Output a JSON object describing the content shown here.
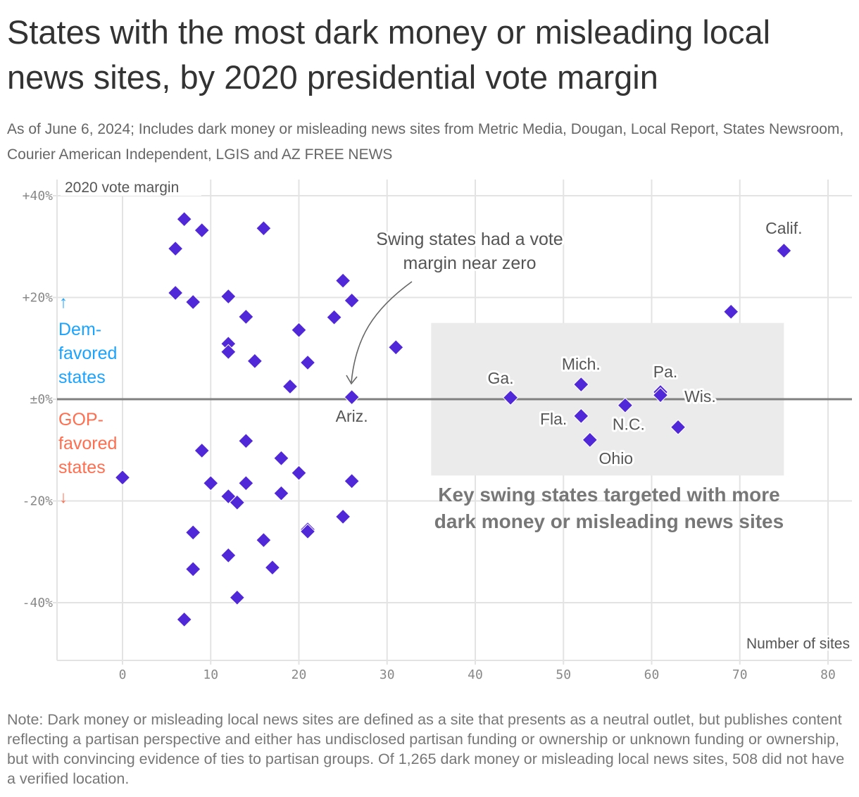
{
  "title": "States with the most dark money or misleading local news sites, by 2020 presidential vote margin",
  "subtitle": "As of June 6, 2024; Includes dark money or misleading news sites from Metric Media, Dougan, Local Report, States Newsroom, Courier American Independent, LGIS and AZ FREE NEWS",
  "note": "Note: Dark money or misleading local news sites are defined as a site that presents as a neutral outlet, but publishes content reflecting a partisan perspective and either has undisclosed partisan funding or ownership or unknown funding or ownership, but with convincing evidence of ties to partisan groups. Of 1,265 dark money or misleading local news sites, 508 did not have a verified location.",
  "chart_data": {
    "type": "scatter",
    "xlabel": "Number of sites",
    "ylabel": "2020 vote margin",
    "xlim": [
      -7.5,
      82.5
    ],
    "ylim": [
      -51,
      44
    ],
    "x_ticks": [
      "0",
      "10",
      "20",
      "30",
      "40",
      "50",
      "60",
      "70",
      "80"
    ],
    "x_tick_values": [
      0,
      10,
      20,
      30,
      40,
      50,
      60,
      70,
      80
    ],
    "y_ticks": [
      "+40%",
      "+20%",
      "±0%",
      "-20%",
      "-40%"
    ],
    "y_tick_values": [
      40,
      20,
      0,
      -20,
      -40
    ],
    "grid": true,
    "marker": "diamond",
    "colors": {
      "points": "#5128d8",
      "dem": "#1aa3ff",
      "gop": "#ff6e4f",
      "zero_line": "#808080",
      "swing_box": "#ebebeb"
    },
    "side_labels": {
      "dem": [
        "Dem-",
        "favored",
        "states"
      ],
      "gop": [
        "GOP-",
        "favored",
        "states"
      ],
      "up_arrow": "↑",
      "down_arrow": "↓"
    },
    "annotations": {
      "swing_note": [
        "Swing states had a vote",
        "margin near zero"
      ],
      "swing_box_label": [
        "Key swing states targeted with more",
        "dark money or misleading news sites"
      ],
      "swing_box_range": {
        "x": [
          35,
          75
        ],
        "y": [
          -15,
          15
        ]
      }
    },
    "points": [
      {
        "x": 7,
        "y": 35.4
      },
      {
        "x": 9,
        "y": 33.2
      },
      {
        "x": 16,
        "y": 33.6
      },
      {
        "x": 6,
        "y": 29.6
      },
      {
        "x": 6,
        "y": 20.9
      },
      {
        "x": 8,
        "y": 19.1
      },
      {
        "x": 12,
        "y": 20.2
      },
      {
        "x": 14,
        "y": 16.2
      },
      {
        "x": 12,
        "y": 10.9
      },
      {
        "x": 12,
        "y": 9.3
      },
      {
        "x": 15,
        "y": 7.5
      },
      {
        "x": 19,
        "y": 2.5
      },
      {
        "x": 20,
        "y": 13.6
      },
      {
        "x": 21,
        "y": 7.2
      },
      {
        "x": 24,
        "y": 16.1
      },
      {
        "x": 25,
        "y": 23.3
      },
      {
        "x": 26,
        "y": 19.4
      },
      {
        "x": 26,
        "y": 0.4,
        "label": "Ariz."
      },
      {
        "x": 31,
        "y": 10.2
      },
      {
        "x": 0,
        "y": -15.4
      },
      {
        "x": 9,
        "y": -10.1
      },
      {
        "x": 14,
        "y": -8.2
      },
      {
        "x": 18,
        "y": -11.6
      },
      {
        "x": 20,
        "y": -14.5
      },
      {
        "x": 10,
        "y": -16.5
      },
      {
        "x": 14,
        "y": -16.5
      },
      {
        "x": 12,
        "y": -19.1
      },
      {
        "x": 13,
        "y": -20.3
      },
      {
        "x": 18,
        "y": -18.5
      },
      {
        "x": 26,
        "y": -16.1
      },
      {
        "x": 25,
        "y": -23.1
      },
      {
        "x": 21,
        "y": -25.6
      },
      {
        "x": 21,
        "y": -26.0
      },
      {
        "x": 8,
        "y": -26.2
      },
      {
        "x": 16,
        "y": -27.7
      },
      {
        "x": 12,
        "y": -30.7
      },
      {
        "x": 17,
        "y": -33.1
      },
      {
        "x": 8,
        "y": -33.4
      },
      {
        "x": 13,
        "y": -39.0
      },
      {
        "x": 7,
        "y": -43.3
      },
      {
        "x": 44,
        "y": 0.3,
        "label": "Ga."
      },
      {
        "x": 52,
        "y": 2.9,
        "label": "Mich."
      },
      {
        "x": 52,
        "y": -3.3,
        "label": "Fla."
      },
      {
        "x": 53,
        "y": -8.0,
        "label": "Ohio"
      },
      {
        "x": 57,
        "y": -1.2,
        "label": "N.C."
      },
      {
        "x": 61,
        "y": 1.4,
        "label": "Pa."
      },
      {
        "x": 61,
        "y": 0.8,
        "label": "Wis."
      },
      {
        "x": 63,
        "y": -5.5
      },
      {
        "x": 69,
        "y": 17.2
      },
      {
        "x": 75,
        "y": 29.2,
        "label": "Calif."
      }
    ]
  }
}
